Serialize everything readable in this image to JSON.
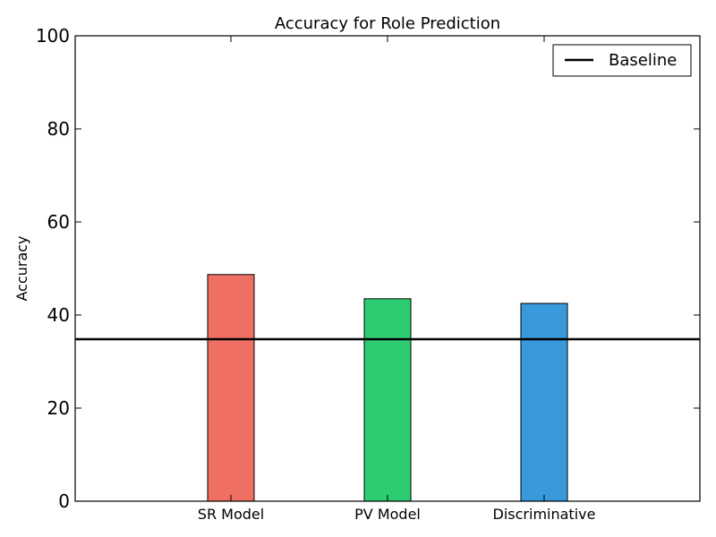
{
  "chart_data": {
    "type": "bar",
    "title": "Accuracy for Role Prediction",
    "xlabel": "",
    "ylabel": "Accuracy",
    "categories": [
      "SR Model",
      "PV Model",
      "Discriminative"
    ],
    "values": [
      48.7,
      43.5,
      42.5
    ],
    "colors": [
      "#ef7063",
      "#2ecc71",
      "#3899db"
    ],
    "ylim": [
      0,
      100
    ],
    "yticks": [
      0,
      20,
      40,
      60,
      80,
      100
    ],
    "baseline": {
      "name": "Baseline",
      "value": 34.8,
      "color": "#000000"
    },
    "legend": {
      "position": "top-right",
      "entries": [
        "Baseline"
      ]
    },
    "grid": false
  }
}
